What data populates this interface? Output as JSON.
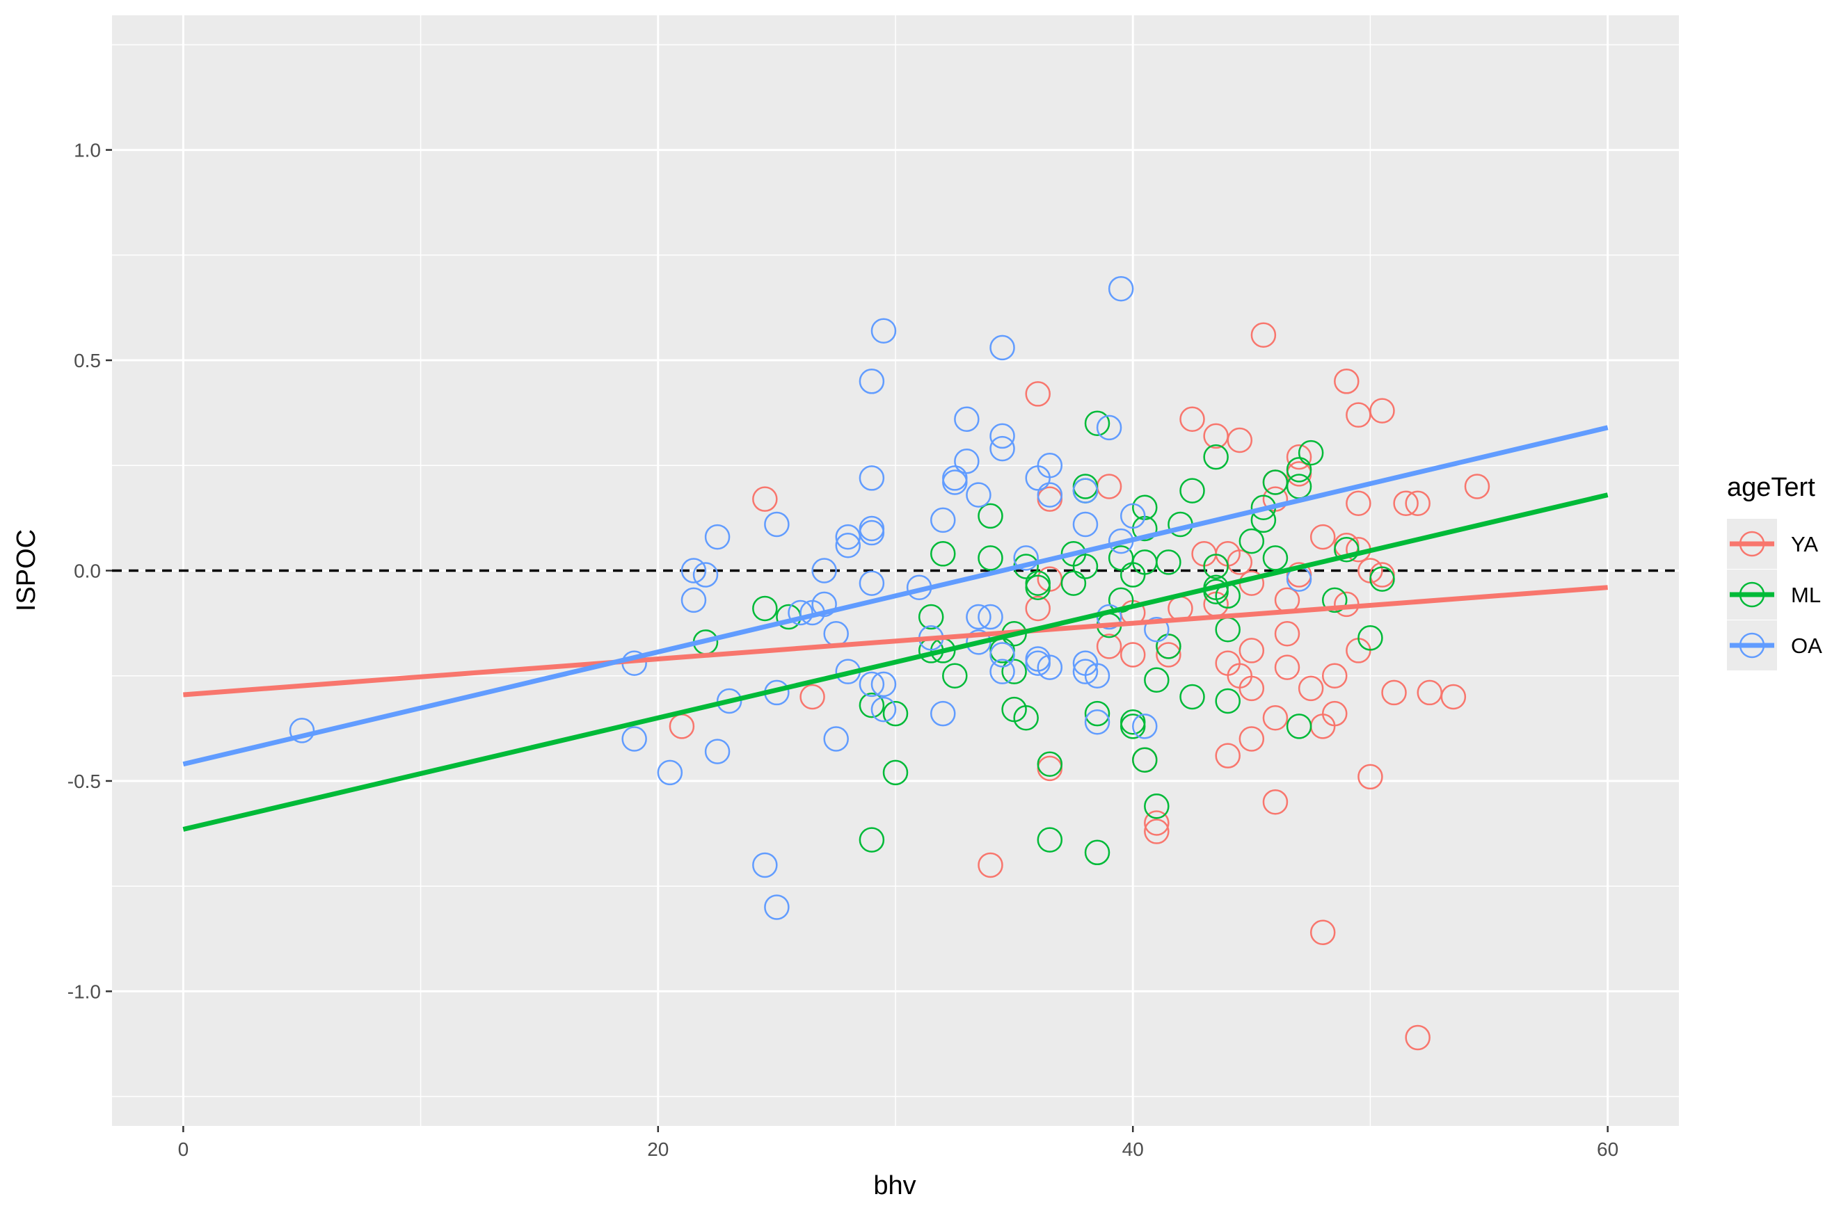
{
  "chart_data": {
    "type": "scatter",
    "title": "",
    "xlabel": "bhv",
    "ylabel": "ISPOC",
    "xlim": [
      -3,
      63
    ],
    "ylim": [
      -1.32,
      1.32
    ],
    "x_ticks": [
      0,
      20,
      40,
      60
    ],
    "x_tick_labels": [
      "0",
      "20",
      "40",
      "60"
    ],
    "y_ticks": [
      -1.0,
      -0.5,
      0.0,
      0.5,
      1.0
    ],
    "y_tick_labels": [
      "-1.0",
      "-0.5",
      "0.0",
      "0.5",
      "1.0"
    ],
    "reference_line": {
      "y": 0,
      "style": "dashed",
      "color": "#000000"
    },
    "legend": {
      "title": "ageTert",
      "position": "right"
    },
    "series": [
      {
        "name": "YA",
        "color": "#F8766D",
        "fit": {
          "x": [
            0,
            60
          ],
          "y": [
            -0.295,
            -0.04
          ]
        },
        "points": [
          [
            21,
            -0.37
          ],
          [
            24.5,
            0.17
          ],
          [
            26.5,
            -0.3
          ],
          [
            34,
            -0.7
          ],
          [
            36,
            0.42
          ],
          [
            36,
            -0.09
          ],
          [
            36.5,
            -0.02
          ],
          [
            36.5,
            0.17
          ],
          [
            36.5,
            -0.47
          ],
          [
            39,
            0.2
          ],
          [
            39,
            -0.18
          ],
          [
            40,
            -0.2
          ],
          [
            40,
            -0.1
          ],
          [
            40.5,
            -0.45
          ],
          [
            41,
            -0.6
          ],
          [
            41,
            -0.62
          ],
          [
            41.5,
            -0.2
          ],
          [
            41.5,
            -0.18
          ],
          [
            42,
            -0.09
          ],
          [
            42.5,
            0.36
          ],
          [
            43,
            0.04
          ],
          [
            43.5,
            0.32
          ],
          [
            43.5,
            -0.08
          ],
          [
            43.5,
            0.01
          ],
          [
            44,
            0.04
          ],
          [
            44,
            -0.22
          ],
          [
            44,
            -0.44
          ],
          [
            44.5,
            0.31
          ],
          [
            44.5,
            0.02
          ],
          [
            44.5,
            -0.25
          ],
          [
            45,
            -0.03
          ],
          [
            45,
            -0.19
          ],
          [
            45,
            -0.28
          ],
          [
            45,
            -0.4
          ],
          [
            45.5,
            0.56
          ],
          [
            46,
            0.21
          ],
          [
            46,
            0.17
          ],
          [
            46,
            -0.35
          ],
          [
            46,
            -0.55
          ],
          [
            46.5,
            -0.07
          ],
          [
            46.5,
            -0.15
          ],
          [
            46.5,
            -0.23
          ],
          [
            47,
            0.27
          ],
          [
            47,
            0.23
          ],
          [
            47,
            -0.01
          ],
          [
            47.5,
            -0.28
          ],
          [
            48,
            0.08
          ],
          [
            48,
            -0.37
          ],
          [
            48,
            -0.86
          ],
          [
            48.5,
            -0.25
          ],
          [
            48.5,
            -0.34
          ],
          [
            49,
            0.45
          ],
          [
            49,
            0.06
          ],
          [
            49,
            -0.08
          ],
          [
            49.5,
            0.37
          ],
          [
            49.5,
            0.16
          ],
          [
            49.5,
            0.05
          ],
          [
            49.5,
            -0.19
          ],
          [
            50,
            0.0
          ],
          [
            50,
            -0.49
          ],
          [
            50.5,
            0.38
          ],
          [
            50.5,
            -0.01
          ],
          [
            51.5,
            0.16
          ],
          [
            51,
            -0.29
          ],
          [
            52,
            0.16
          ],
          [
            52,
            -1.11
          ],
          [
            52.5,
            -0.29
          ],
          [
            53.5,
            -0.3
          ],
          [
            54.5,
            0.2
          ]
        ]
      },
      {
        "name": "ML",
        "color": "#00BA38",
        "fit": {
          "x": [
            0,
            60
          ],
          "y": [
            -0.615,
            0.18
          ]
        },
        "points": [
          [
            22,
            -0.17
          ],
          [
            24.5,
            -0.09
          ],
          [
            25.5,
            -0.11
          ],
          [
            29,
            -0.32
          ],
          [
            29,
            -0.64
          ],
          [
            30,
            -0.34
          ],
          [
            30,
            -0.48
          ],
          [
            31.5,
            -0.11
          ],
          [
            31.5,
            -0.19
          ],
          [
            32,
            0.04
          ],
          [
            32,
            -0.19
          ],
          [
            32.5,
            -0.25
          ],
          [
            34,
            0.13
          ],
          [
            34,
            0.03
          ],
          [
            34.5,
            -0.19
          ],
          [
            35,
            -0.15
          ],
          [
            35,
            -0.24
          ],
          [
            35,
            -0.33
          ],
          [
            35.5,
            -0.35
          ],
          [
            35.5,
            0.01
          ],
          [
            36,
            -0.04
          ],
          [
            36,
            -0.03
          ],
          [
            36.5,
            -0.46
          ],
          [
            36.5,
            -0.64
          ],
          [
            37.5,
            0.04
          ],
          [
            37.5,
            -0.03
          ],
          [
            38,
            0.2
          ],
          [
            38,
            0.19
          ],
          [
            38,
            0.01
          ],
          [
            38.5,
            0.35
          ],
          [
            38.5,
            -0.34
          ],
          [
            38.5,
            -0.67
          ],
          [
            39,
            -0.13
          ],
          [
            39.5,
            0.03
          ],
          [
            39.5,
            -0.07
          ],
          [
            40,
            -0.01
          ],
          [
            40,
            -0.36
          ],
          [
            40,
            -0.37
          ],
          [
            40.5,
            0.15
          ],
          [
            40.5,
            0.1
          ],
          [
            40.5,
            0.02
          ],
          [
            40.5,
            -0.45
          ],
          [
            41,
            -0.26
          ],
          [
            41,
            -0.56
          ],
          [
            41.5,
            0.02
          ],
          [
            41.5,
            -0.18
          ],
          [
            42,
            0.11
          ],
          [
            42.5,
            0.19
          ],
          [
            42.5,
            -0.3
          ],
          [
            43.5,
            0.27
          ],
          [
            43.5,
            0.01
          ],
          [
            43.5,
            -0.04
          ],
          [
            43.5,
            -0.05
          ],
          [
            44,
            -0.06
          ],
          [
            44,
            -0.14
          ],
          [
            44,
            -0.31
          ],
          [
            45,
            0.07
          ],
          [
            45.5,
            0.12
          ],
          [
            45.5,
            0.15
          ],
          [
            46,
            0.21
          ],
          [
            46,
            0.03
          ],
          [
            47,
            0.24
          ],
          [
            47,
            0.2
          ],
          [
            47,
            -0.37
          ],
          [
            47.5,
            0.28
          ],
          [
            48.5,
            -0.07
          ],
          [
            49,
            0.05
          ],
          [
            50,
            -0.16
          ],
          [
            50.5,
            -0.02
          ]
        ]
      },
      {
        "name": "OA",
        "color": "#619CFF",
        "fit": {
          "x": [
            0,
            60
          ],
          "y": [
            -0.46,
            0.34
          ]
        },
        "points": [
          [
            5,
            -0.38
          ],
          [
            19,
            -0.22
          ],
          [
            19,
            -0.4
          ],
          [
            20.5,
            -0.48
          ],
          [
            21.5,
            0.0
          ],
          [
            21.5,
            -0.07
          ],
          [
            22,
            -0.01
          ],
          [
            22.5,
            0.08
          ],
          [
            22.5,
            -0.43
          ],
          [
            23,
            -0.31
          ],
          [
            24.5,
            -0.7
          ],
          [
            25,
            0.11
          ],
          [
            25,
            -0.29
          ],
          [
            25,
            -0.8
          ],
          [
            26,
            -0.1
          ],
          [
            26.5,
            -0.1
          ],
          [
            27,
            0.0
          ],
          [
            27,
            -0.08
          ],
          [
            27.5,
            -0.15
          ],
          [
            27.5,
            -0.4
          ],
          [
            28,
            0.08
          ],
          [
            28,
            0.06
          ],
          [
            28,
            -0.24
          ],
          [
            29,
            0.45
          ],
          [
            29,
            0.22
          ],
          [
            29,
            0.1
          ],
          [
            29,
            0.09
          ],
          [
            29,
            -0.03
          ],
          [
            29,
            -0.27
          ],
          [
            29.5,
            0.57
          ],
          [
            29.5,
            -0.27
          ],
          [
            29.5,
            -0.33
          ],
          [
            31,
            -0.04
          ],
          [
            31.5,
            -0.16
          ],
          [
            32,
            0.12
          ],
          [
            32,
            -0.34
          ],
          [
            32.5,
            0.22
          ],
          [
            32.5,
            0.21
          ],
          [
            33,
            0.36
          ],
          [
            33,
            0.26
          ],
          [
            33.5,
            0.18
          ],
          [
            33.5,
            -0.11
          ],
          [
            33.5,
            -0.17
          ],
          [
            34,
            -0.11
          ],
          [
            34.5,
            0.53
          ],
          [
            34.5,
            0.32
          ],
          [
            34.5,
            0.29
          ],
          [
            34.5,
            -0.24
          ],
          [
            34.5,
            -0.2
          ],
          [
            35.5,
            0.03
          ],
          [
            36,
            0.22
          ],
          [
            36,
            -0.21
          ],
          [
            36,
            -0.22
          ],
          [
            36.5,
            0.25
          ],
          [
            36.5,
            0.18
          ],
          [
            36.5,
            -0.23
          ],
          [
            38,
            0.19
          ],
          [
            38,
            0.11
          ],
          [
            38,
            -0.22
          ],
          [
            38,
            -0.24
          ],
          [
            38.5,
            -0.25
          ],
          [
            38.5,
            -0.36
          ],
          [
            39,
            0.34
          ],
          [
            39,
            -0.11
          ],
          [
            39.5,
            0.67
          ],
          [
            39.5,
            0.07
          ],
          [
            40,
            0.13
          ],
          [
            40.5,
            -0.37
          ],
          [
            41,
            -0.14
          ],
          [
            47,
            -0.02
          ]
        ]
      }
    ]
  }
}
